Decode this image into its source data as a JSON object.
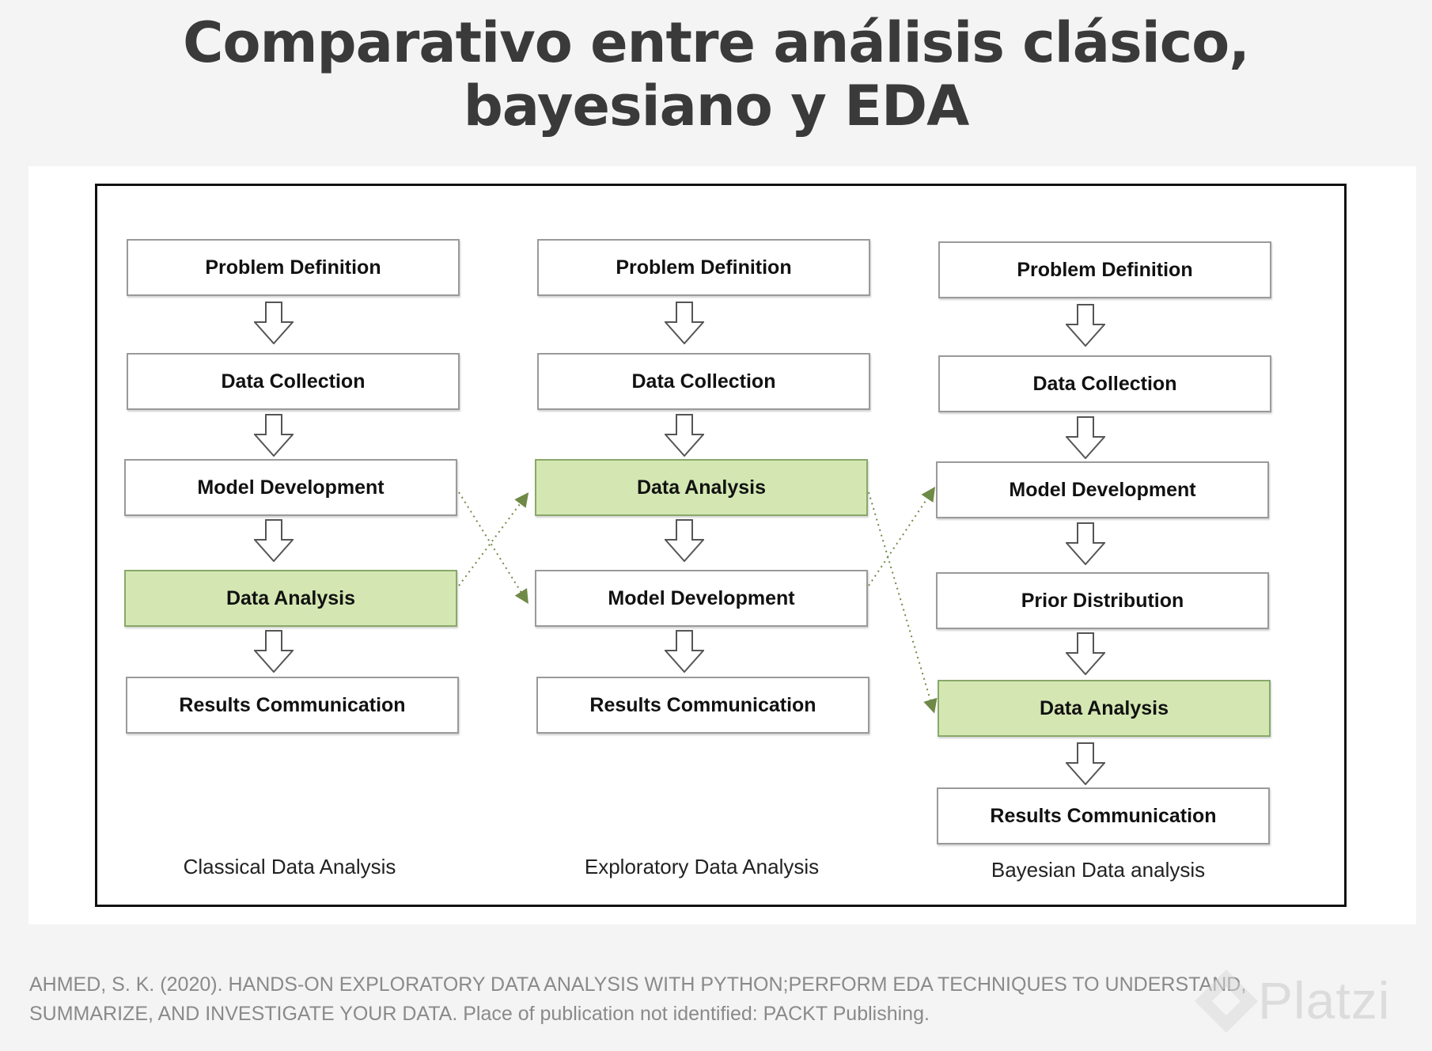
{
  "title": {
    "line1": "Comparativo entre análisis clásico,",
    "line2": "bayesiano y EDA"
  },
  "columns": [
    {
      "label": "Classical Data Analysis",
      "steps": [
        {
          "text": "Problem Definition",
          "highlight": false
        },
        {
          "text": "Data Collection",
          "highlight": false
        },
        {
          "text": "Model Development",
          "highlight": false
        },
        {
          "text": "Data Analysis",
          "highlight": true
        },
        {
          "text": "Results Communication",
          "highlight": false
        }
      ]
    },
    {
      "label": "Exploratory Data Analysis",
      "steps": [
        {
          "text": "Problem Definition",
          "highlight": false
        },
        {
          "text": "Data Collection",
          "highlight": false
        },
        {
          "text": "Data Analysis",
          "highlight": true
        },
        {
          "text": "Model Development",
          "highlight": false
        },
        {
          "text": "Results Communication",
          "highlight": false
        }
      ]
    },
    {
      "label": "Bayesian Data analysis",
      "steps": [
        {
          "text": "Problem Definition",
          "highlight": false
        },
        {
          "text": "Data Collection",
          "highlight": false
        },
        {
          "text": "Model Development",
          "highlight": false
        },
        {
          "text": "Prior Distribution",
          "highlight": false
        },
        {
          "text": "Data Analysis",
          "highlight": true
        },
        {
          "text": "Results Communication",
          "highlight": false
        }
      ]
    }
  ],
  "citation": {
    "line1": "AHMED, S. K. (2020). HANDS-ON EXPLORATORY DATA ANALYSIS WITH PYTHON;PERFORM EDA TECHNIQUES TO UNDERSTAND,",
    "line2": "SUMMARIZE, AND INVESTIGATE YOUR DATA. Place of publication not identified: PACKT Publishing."
  },
  "watermark": {
    "text": "Platzi",
    "icon": "platzi-logo-icon"
  },
  "colors": {
    "highlight": "#d4e7b2",
    "connector": "#7a8f5a",
    "title": "#3a3a3a"
  }
}
